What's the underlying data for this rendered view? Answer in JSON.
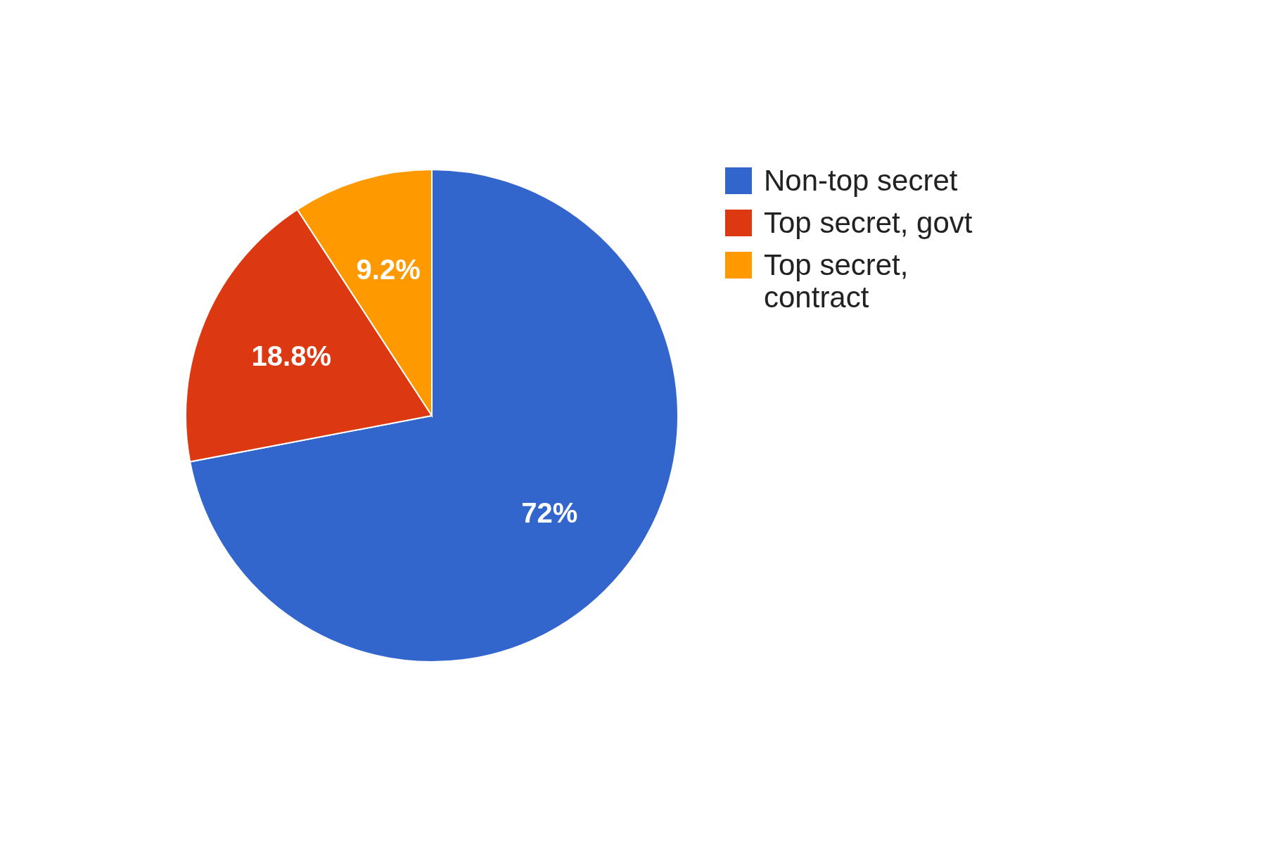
{
  "chart_data": {
    "type": "pie",
    "categories": [
      "Non-top secret",
      "Top secret, govt",
      "Top secret, contract"
    ],
    "values": [
      72,
      18.8,
      9.2
    ],
    "colors": [
      "#3366cc",
      "#dc3912",
      "#ff9900"
    ],
    "value_labels": [
      "72%",
      "18.8%",
      "9.2%"
    ],
    "legend": "right"
  }
}
